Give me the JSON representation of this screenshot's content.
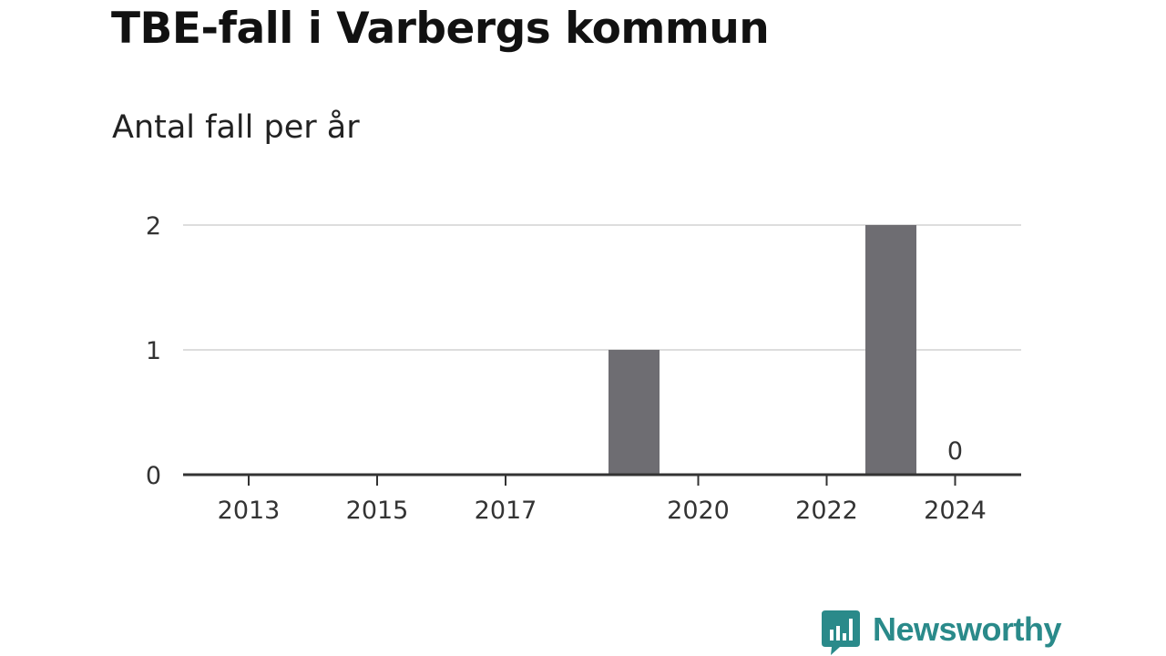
{
  "chart_data": {
    "type": "bar",
    "title": "TBE-fall i Varbergs kommun",
    "subtitle": "Antal fall per år",
    "xlabel": "",
    "ylabel": "",
    "x": [
      2013,
      2014,
      2015,
      2016,
      2017,
      2018,
      2019,
      2020,
      2021,
      2022,
      2023,
      2024
    ],
    "values": [
      0,
      0,
      0,
      0,
      0,
      0,
      1,
      0,
      0,
      0,
      2,
      0
    ],
    "x_ticks": [
      "2013",
      "2015",
      "2017",
      "2020",
      "2022",
      "2024"
    ],
    "y_ticks": [
      "0",
      "1",
      "2"
    ],
    "ylim": [
      0,
      2
    ],
    "xlim": [
      2012,
      2025
    ],
    "grid": true,
    "annotations": [
      {
        "x": 2024,
        "text": "0"
      }
    ],
    "colors": {
      "bar": "#6e6d72",
      "grid": "#dddddd",
      "axis": "#333333"
    }
  },
  "brand": {
    "name": "Newsworthy",
    "icon": "bar-chart-speech-bubble-icon",
    "color": "#2a8a8a"
  }
}
